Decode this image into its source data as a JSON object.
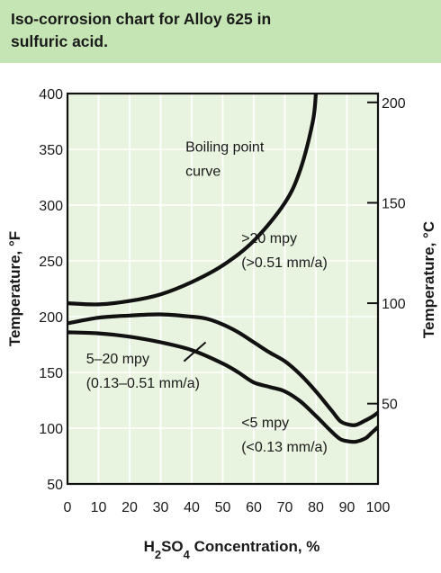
{
  "header": {
    "title_line1": "Iso-corrosion chart for Alloy 625 in",
    "title_line2": "sulfuric acid."
  },
  "colors": {
    "header_bg": "#c6e5b4",
    "plot_bg": "#e8f4e0",
    "grid": "#ffffff",
    "curve": "#111111"
  },
  "chart_data": {
    "type": "line",
    "title": "Iso-corrosion chart for Alloy 625 in sulfuric acid.",
    "xlabel_parts": [
      "H",
      "2",
      "SO",
      "4",
      " Concentration, %"
    ],
    "ylabel": "Temperature, °F",
    "y2label": "Temperature, °C",
    "xlim": [
      0,
      100
    ],
    "ylim": [
      50,
      400
    ],
    "y2lim": [
      10,
      204.4
    ],
    "xticks": [
      0,
      10,
      20,
      30,
      40,
      50,
      60,
      70,
      80,
      90,
      100
    ],
    "yticks": [
      50,
      100,
      150,
      200,
      250,
      300,
      350,
      400
    ],
    "y2ticks": [
      50,
      100,
      150,
      200
    ],
    "grid": true,
    "series": [
      {
        "name": "Boiling point curve",
        "x": [
          0,
          10,
          20,
          30,
          40,
          50,
          60,
          70,
          75,
          79,
          80
        ],
        "y": [
          212,
          211,
          214,
          220,
          231,
          246,
          268,
          302,
          332,
          375,
          400
        ]
      },
      {
        "name": "5 mpy",
        "x": [
          0,
          10,
          20,
          30,
          40,
          45,
          50,
          55,
          60,
          65,
          70,
          75,
          80,
          85,
          88,
          91,
          93,
          96,
          98,
          100
        ],
        "y": [
          194,
          199,
          201,
          202,
          200,
          198,
          193,
          186,
          177,
          168,
          160,
          148,
          133,
          116,
          106,
          103,
          103,
          107,
          110,
          114
        ]
      },
      {
        "name": "20 mpy",
        "x": [
          0,
          10,
          20,
          30,
          40,
          50,
          55,
          60,
          65,
          70,
          75,
          80,
          85,
          88,
          91,
          93,
          96,
          98,
          100
        ],
        "y": [
          186,
          185,
          182,
          177,
          170,
          158,
          150,
          141,
          137,
          133,
          124,
          111,
          97,
          90,
          88,
          88,
          91,
          96,
          101
        ]
      }
    ],
    "annotations": [
      {
        "lines": [
          "Boiling point",
          "curve"
        ],
        "x": 38,
        "y": 348
      },
      {
        "lines": [
          ">20 mpy",
          "(>0.51 mm/a)"
        ],
        "x": 56,
        "y": 266
      },
      {
        "lines": [
          "5–20 mpy",
          "(0.13–0.51 mm/a)"
        ],
        "x": 6,
        "y": 158
      },
      {
        "lines": [
          "<5 mpy",
          "(<0.13 mm/a)"
        ],
        "x": 56,
        "y": 101
      }
    ]
  }
}
